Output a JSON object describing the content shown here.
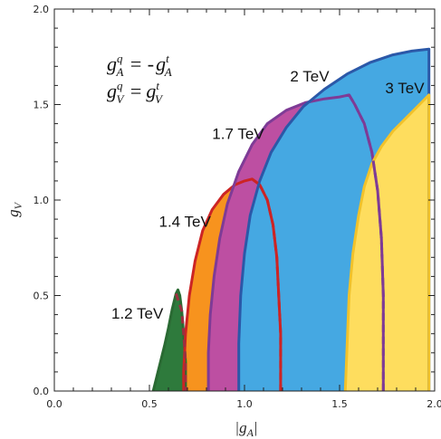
{
  "chart_data": {
    "type": "area",
    "xlabel": "|g_A|",
    "ylabel": "g_V",
    "xlim": [
      0.0,
      2.0
    ],
    "ylim": [
      0.0,
      2.0
    ],
    "xticks": [
      "0.0",
      "0.5",
      "1.0",
      "1.5",
      "2.0"
    ],
    "yticks": [
      "0.0",
      "0.5",
      "1.0",
      "1.5",
      "2.0"
    ],
    "grid": false,
    "legend": {
      "line1": {
        "lhs": "g",
        "lhs_sup": "q",
        "lhs_sub": "A",
        "op": "= -",
        "rhs": "g",
        "rhs_sup": "t",
        "rhs_sub": "A"
      },
      "line2": {
        "lhs": "g",
        "lhs_sup": "q",
        "lhs_sub": "V",
        "op": "=",
        "rhs": "g",
        "rhs_sup": "t",
        "rhs_sub": "V"
      }
    },
    "regions": [
      {
        "label": "1.2 TeV",
        "color": "#2e7a3c",
        "boundary": [
          [
            0.52,
            0.0
          ],
          [
            0.54,
            0.08
          ],
          [
            0.56,
            0.16
          ],
          [
            0.58,
            0.24
          ],
          [
            0.6,
            0.33
          ],
          [
            0.62,
            0.43
          ],
          [
            0.64,
            0.51
          ],
          [
            0.65,
            0.53
          ],
          [
            0.66,
            0.5
          ],
          [
            0.67,
            0.42
          ],
          [
            0.68,
            0.3
          ],
          [
            0.69,
            0.15
          ],
          [
            0.69,
            0.0
          ]
        ]
      },
      {
        "label": "1.4 TeV",
        "color": "#f7931e",
        "boundary": [
          [
            0.68,
            0.0
          ],
          [
            0.68,
            0.1
          ],
          [
            0.69,
            0.3
          ],
          [
            0.71,
            0.5
          ],
          [
            0.74,
            0.68
          ],
          [
            0.78,
            0.84
          ],
          [
            0.83,
            0.95
          ],
          [
            0.89,
            1.03
          ],
          [
            0.95,
            1.08
          ],
          [
            1.0,
            1.1
          ],
          [
            1.04,
            1.11
          ],
          [
            1.08,
            1.08
          ],
          [
            1.12,
            1.0
          ],
          [
            1.15,
            0.87
          ],
          [
            1.17,
            0.7
          ],
          [
            1.18,
            0.5
          ],
          [
            1.19,
            0.3
          ],
          [
            1.19,
            0.0
          ]
        ]
      },
      {
        "label": "1.7 TeV",
        "color": "#bd4fa2",
        "boundary": [
          [
            0.81,
            0.0
          ],
          [
            0.81,
            0.2
          ],
          [
            0.82,
            0.4
          ],
          [
            0.84,
            0.6
          ],
          [
            0.87,
            0.8
          ],
          [
            0.91,
            0.98
          ],
          [
            0.97,
            1.15
          ],
          [
            1.04,
            1.29
          ],
          [
            1.12,
            1.4
          ],
          [
            1.22,
            1.47
          ],
          [
            1.32,
            1.51
          ],
          [
            1.42,
            1.53
          ],
          [
            1.5,
            1.54
          ],
          [
            1.55,
            1.55
          ],
          [
            1.58,
            1.5
          ],
          [
            1.63,
            1.4
          ],
          [
            1.67,
            1.25
          ],
          [
            1.7,
            1.05
          ],
          [
            1.72,
            0.8
          ],
          [
            1.73,
            0.5
          ],
          [
            1.73,
            0.2
          ],
          [
            1.73,
            0.0
          ]
        ]
      },
      {
        "label": "2 TeV",
        "color": "#45a8e2",
        "boundary": [
          [
            0.97,
            0.0
          ],
          [
            0.97,
            0.25
          ],
          [
            0.98,
            0.5
          ],
          [
            1.0,
            0.72
          ],
          [
            1.03,
            0.92
          ],
          [
            1.08,
            1.1
          ],
          [
            1.14,
            1.25
          ],
          [
            1.22,
            1.38
          ],
          [
            1.31,
            1.49
          ],
          [
            1.42,
            1.58
          ],
          [
            1.54,
            1.66
          ],
          [
            1.66,
            1.72
          ],
          [
            1.78,
            1.76
          ],
          [
            1.88,
            1.78
          ],
          [
            1.97,
            1.79
          ],
          [
            1.97,
            0.0
          ]
        ]
      },
      {
        "label": "3 TeV",
        "color": "#fedd5e",
        "boundary": [
          [
            1.53,
            0.0
          ],
          [
            1.54,
            0.25
          ],
          [
            1.55,
            0.5
          ],
          [
            1.57,
            0.72
          ],
          [
            1.6,
            0.92
          ],
          [
            1.63,
            1.07
          ],
          [
            1.67,
            1.19
          ],
          [
            1.72,
            1.28
          ],
          [
            1.78,
            1.36
          ],
          [
            1.85,
            1.43
          ],
          [
            1.92,
            1.5
          ],
          [
            1.97,
            1.55
          ],
          [
            1.97,
            0.0
          ]
        ]
      }
    ],
    "dashed_curves": [
      {
        "name": "1.2 TeV",
        "color": "#9c2f40",
        "points": [
          [
            0.64,
            0.51
          ],
          [
            0.67,
            0.42
          ],
          [
            0.68,
            0.3
          ],
          [
            0.69,
            0.15
          ],
          [
            0.69,
            0.0
          ]
        ]
      },
      {
        "name": "1.4 TeV",
        "color": "#cc2424",
        "points": [
          [
            1.04,
            1.11
          ],
          [
            1.08,
            1.08
          ],
          [
            1.12,
            1.0
          ],
          [
            1.15,
            0.87
          ],
          [
            1.17,
            0.7
          ],
          [
            1.18,
            0.5
          ],
          [
            1.19,
            0.3
          ],
          [
            1.19,
            0.0
          ]
        ]
      },
      {
        "name": "1.7 TeV",
        "color": "#7e3b96",
        "points": [
          [
            1.55,
            1.55
          ],
          [
            1.58,
            1.5
          ],
          [
            1.63,
            1.4
          ],
          [
            1.67,
            1.25
          ],
          [
            1.7,
            1.05
          ],
          [
            1.72,
            0.8
          ],
          [
            1.73,
            0.5
          ],
          [
            1.73,
            0.2
          ],
          [
            1.73,
            0.0
          ]
        ]
      }
    ],
    "boundary_colors": {
      "1.2 TeV": "#2a6a33",
      "1.4 TeV": "#cc2424",
      "1.7 TeV": "#7e3b96",
      "2 TeV": "#2b58a8",
      "3 TeV": "#f2c22a"
    },
    "labels": [
      {
        "text": "1.2 TeV",
        "at": [
          0.3,
          0.38
        ]
      },
      {
        "text": "1.4 TeV",
        "at": [
          0.55,
          0.86
        ]
      },
      {
        "text": "1.7 TeV",
        "at": [
          0.83,
          1.32
        ]
      },
      {
        "text": "2 TeV",
        "at": [
          1.24,
          1.62
        ]
      },
      {
        "text": "3 TeV",
        "at": [
          1.74,
          1.56
        ]
      }
    ]
  }
}
